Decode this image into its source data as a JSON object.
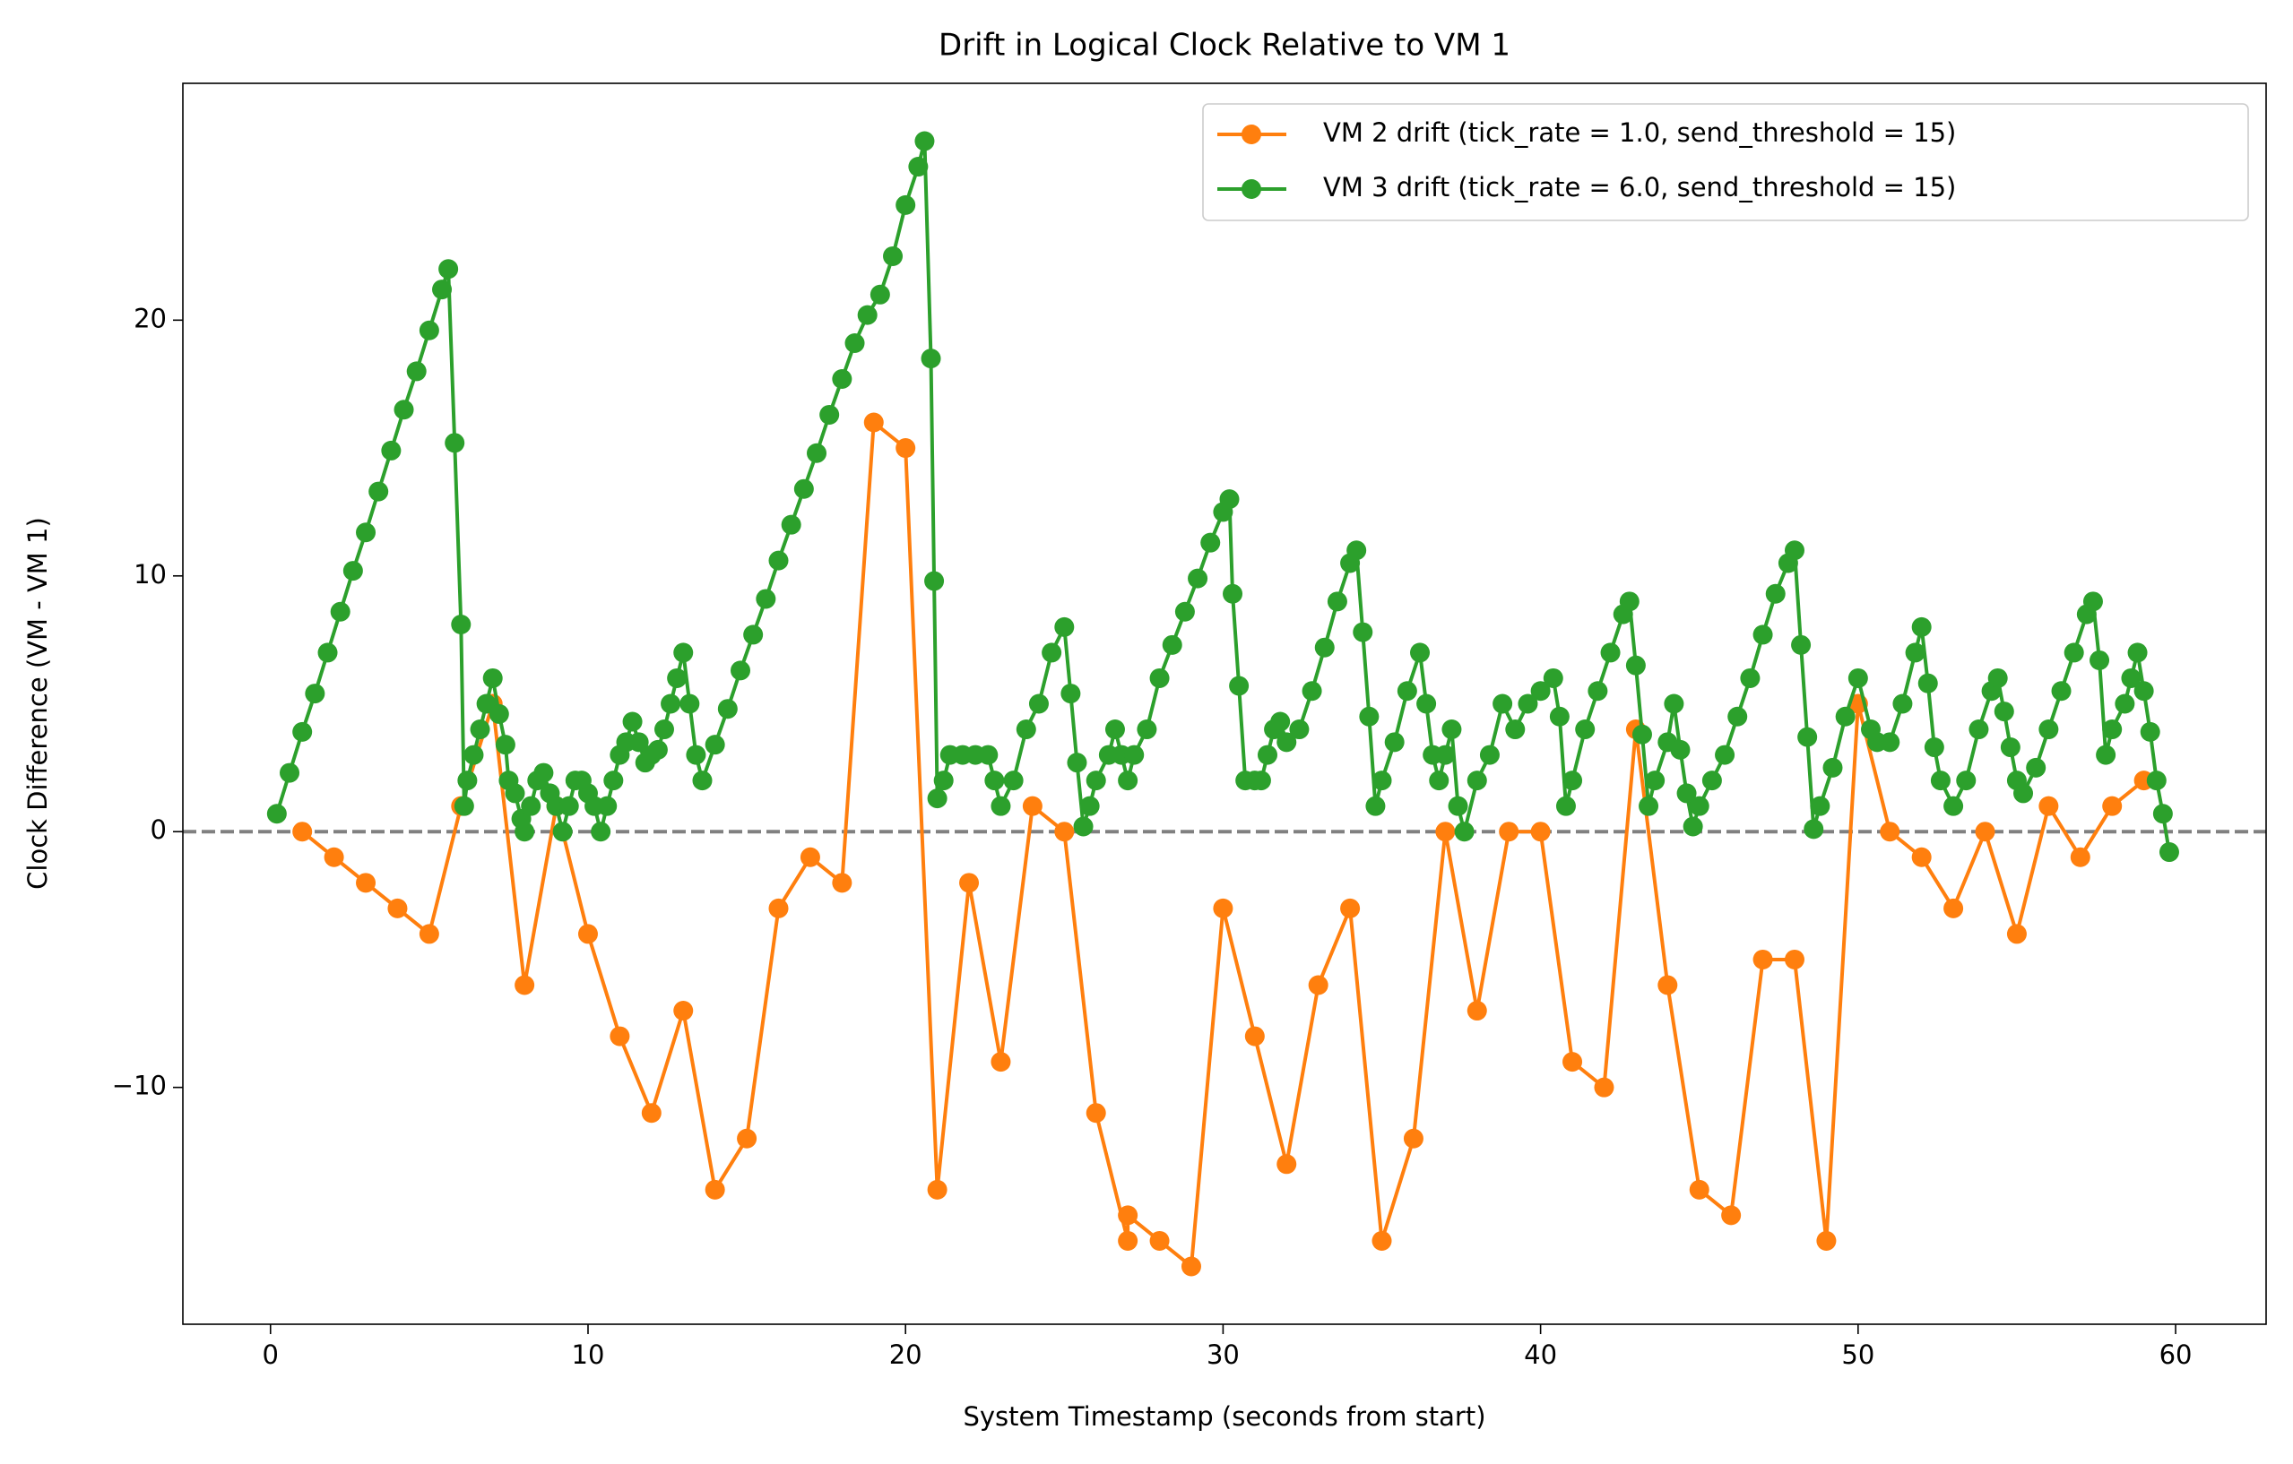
{
  "chart_data": {
    "type": "line",
    "title": "Drift in Logical Clock Relative to VM 1",
    "xlabel": "System Timestamp (seconds from start)",
    "ylabel": "Clock Difference (VM - VM 1)",
    "xlim": [
      -2.76,
      62.85
    ],
    "ylim": [
      -19.26,
      29.26
    ],
    "xticks": [
      0,
      10,
      20,
      30,
      40,
      50,
      60
    ],
    "yticks": [
      {
        "value": -10,
        "label": "−10"
      },
      0,
      10,
      20
    ],
    "reference_line": {
      "y": 0,
      "color": "#808080",
      "style": "dashed"
    },
    "legend": "upper right",
    "series": [
      {
        "name": "VM 2 drift (tick_rate = 1.0, send_threshold = 15)",
        "color": "#ff7f0e",
        "x": [
          1,
          2,
          3,
          4,
          5,
          6,
          7,
          8,
          9,
          10,
          11,
          12,
          13,
          14,
          15,
          16,
          17,
          18,
          19,
          20,
          21,
          22,
          23,
          24,
          25,
          26,
          27,
          27,
          28,
          29,
          30,
          31,
          32,
          33,
          34,
          35,
          36,
          37,
          38,
          39,
          40,
          41,
          42,
          43,
          44,
          45,
          46,
          47,
          48,
          49,
          50,
          51,
          52,
          53,
          54,
          55,
          56,
          57,
          58,
          59
        ],
        "values": [
          0,
          -1,
          -2,
          -3,
          -4,
          1,
          5,
          -6,
          1,
          -4,
          -8,
          -11,
          -7,
          -14,
          -12,
          -3,
          -1,
          -2,
          16,
          15,
          -14,
          -2,
          -9,
          1,
          0,
          -11,
          -16,
          -15,
          -16,
          -17,
          -3,
          -8,
          -13,
          -6,
          -3,
          -16,
          -12,
          0,
          -7,
          0,
          0,
          -9,
          -10,
          4,
          -6,
          -14,
          -15,
          -5,
          -5,
          -16,
          5,
          0,
          -1,
          -3,
          0,
          -4,
          1,
          -1,
          1,
          2
        ]
      },
      {
        "name": "VM 3 drift (tick_rate = 6.0, send_threshold = 15)",
        "color": "#2ca02c",
        "x": [
          0.2,
          0.6,
          1.0,
          1.4,
          1.8,
          2.2,
          2.6,
          3.0,
          3.4,
          3.8,
          4.2,
          4.6,
          5.0,
          5.4,
          5.6,
          5.8,
          6.0,
          6.1,
          6.2,
          6.4,
          6.6,
          6.8,
          7.0,
          7.2,
          7.4,
          7.5,
          7.7,
          7.9,
          8.0,
          8.2,
          8.4,
          8.6,
          8.8,
          9.0,
          9.2,
          9.4,
          9.6,
          9.8,
          10.0,
          10.2,
          10.4,
          10.6,
          10.8,
          11.0,
          11.2,
          11.4,
          11.6,
          11.8,
          12.0,
          12.2,
          12.4,
          12.6,
          12.8,
          13.0,
          13.2,
          13.4,
          13.6,
          14.0,
          14.4,
          14.8,
          15.2,
          15.6,
          16.0,
          16.4,
          16.8,
          17.2,
          17.6,
          18.0,
          18.4,
          18.8,
          19.2,
          19.6,
          20.0,
          20.4,
          20.6,
          20.8,
          20.9,
          21.0,
          21.2,
          21.4,
          21.8,
          22.2,
          22.6,
          22.8,
          23.0,
          23.4,
          23.8,
          24.2,
          24.6,
          25.0,
          25.2,
          25.4,
          25.6,
          25.8,
          26.0,
          26.4,
          26.6,
          26.8,
          27.0,
          27.2,
          27.6,
          28.0,
          28.4,
          28.8,
          29.2,
          29.6,
          30.0,
          30.2,
          30.3,
          30.5,
          30.7,
          31.0,
          31.2,
          31.4,
          31.6,
          31.8,
          32.0,
          32.4,
          32.8,
          33.2,
          33.6,
          34.0,
          34.2,
          34.4,
          34.6,
          34.8,
          35.0,
          35.4,
          35.8,
          36.2,
          36.4,
          36.6,
          36.8,
          37.0,
          37.2,
          37.4,
          37.6,
          38.0,
          38.4,
          38.8,
          39.2,
          39.6,
          40.0,
          40.4,
          40.6,
          40.8,
          41.0,
          41.4,
          41.8,
          42.2,
          42.6,
          42.8,
          43.0,
          43.2,
          43.4,
          43.6,
          44.0,
          44.2,
          44.4,
          44.6,
          44.8,
          45.0,
          45.4,
          45.8,
          46.2,
          46.6,
          47.0,
          47.4,
          47.8,
          48.0,
          48.2,
          48.4,
          48.6,
          48.8,
          49.2,
          49.6,
          50.0,
          50.4,
          50.6,
          51.0,
          51.4,
          51.8,
          52.0,
          52.2,
          52.4,
          52.6,
          53.0,
          53.4,
          53.8,
          54.2,
          54.4,
          54.6,
          54.8,
          55.0,
          55.2,
          55.6,
          56.0,
          56.4,
          56.8,
          57.2,
          57.4,
          57.6,
          57.8,
          58.0,
          58.4,
          58.6,
          58.8,
          59.0,
          59.2,
          59.4,
          59.6,
          59.8
        ],
        "values": [
          0.7,
          2.3,
          3.9,
          5.4,
          7.0,
          8.6,
          10.2,
          11.7,
          13.3,
          14.9,
          16.5,
          18.0,
          19.6,
          21.2,
          22,
          15.2,
          8.1,
          1.0,
          2.0,
          3.0,
          4.0,
          5,
          6,
          4.6,
          3.4,
          2,
          1.5,
          0.5,
          0,
          1,
          2,
          2.3,
          1.5,
          1,
          0,
          1,
          2,
          2,
          1.5,
          1,
          0,
          1,
          2,
          3,
          3.5,
          4.3,
          3.5,
          2.7,
          3,
          3.2,
          4,
          5,
          6,
          7,
          5,
          3,
          2,
          3.4,
          4.8,
          6.3,
          7.7,
          9.1,
          10.6,
          12.0,
          13.4,
          14.8,
          16.3,
          17.7,
          19.1,
          20.2,
          21,
          22.5,
          24.5,
          26.0,
          27,
          18.5,
          9.8,
          1.3,
          2,
          3,
          3,
          3,
          3,
          2,
          1,
          2,
          4,
          5,
          7,
          8,
          5.4,
          2.7,
          0.2,
          1,
          2,
          3,
          4,
          3,
          2,
          3,
          4,
          6,
          7.3,
          8.6,
          9.9,
          11.3,
          12.5,
          13,
          9.3,
          5.7,
          2,
          2,
          2,
          3,
          4,
          4.3,
          3.5,
          4,
          5.5,
          7.2,
          9,
          10.5,
          11,
          7.8,
          4.5,
          1,
          2,
          3.5,
          5.5,
          7,
          5,
          3,
          2,
          3,
          4,
          1,
          0,
          2,
          3,
          5,
          4,
          5,
          5.5,
          6,
          4.5,
          1,
          2,
          4,
          5.5,
          7,
          8.5,
          9,
          6.5,
          3.8,
          1,
          2,
          3.5,
          5,
          3.2,
          1.5,
          0.2,
          1,
          2,
          3,
          4.5,
          6,
          7.7,
          9.3,
          10.5,
          11,
          7.3,
          3.7,
          0.1,
          1,
          2.5,
          4.5,
          6,
          4,
          3.5,
          3.5,
          5,
          7,
          8,
          5.8,
          3.3,
          2,
          1,
          2,
          4,
          5.5,
          6,
          4.7,
          3.3,
          2,
          1.5,
          2.5,
          4,
          5.5,
          7,
          8.5,
          9,
          6.7,
          3,
          4,
          5,
          6,
          7,
          5.5,
          3.9,
          2,
          0.7,
          -0.8
        ]
      }
    ]
  }
}
